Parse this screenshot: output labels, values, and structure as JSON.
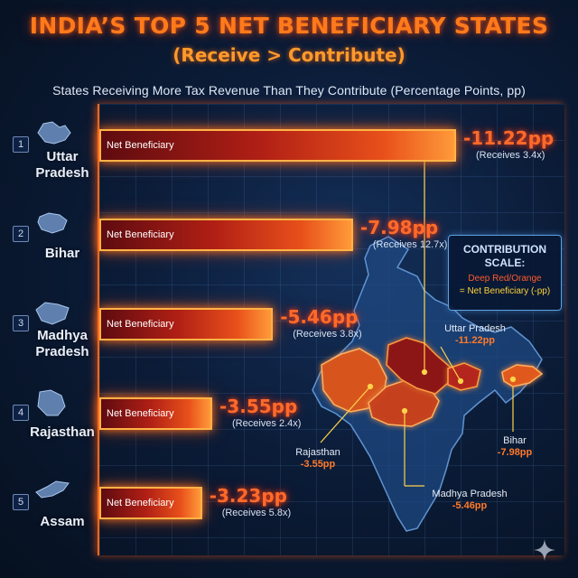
{
  "header": {
    "title": "INDIA’S TOP 5 NET BENEFICIARY STATES",
    "subtitle": "(Receive > Contribute)",
    "caption": "States Receiving More Tax Revenue Than They Contribute (Percentage Points, pp)"
  },
  "chart_data": {
    "type": "bar",
    "orientation": "horizontal",
    "title": "INDIA’S TOP 5 NET BENEFICIARY STATES",
    "subtitle": "(Receive > Contribute)",
    "unit": "pp",
    "categories": [
      "Uttar Pradesh",
      "Bihar",
      "Madhya Pradesh",
      "Rajasthan",
      "Assam"
    ],
    "values": [
      -11.22,
      -7.98,
      -5.46,
      -3.55,
      -3.23
    ],
    "value_labels": [
      "-11.22pp",
      "-7.98pp",
      "-5.46pp",
      "-3.55pp",
      "-3.23pp"
    ],
    "receives": [
      "(Receives 3.4x)",
      "(Receives 12.7x)",
      "(Receives 3.8x)",
      "(Receives 2.4x)",
      "(Receives 5.8x)"
    ],
    "bar_label": "Net Beneficiary",
    "ranks": [
      "1",
      "2",
      "3",
      "4",
      "5"
    ],
    "name_lines": [
      [
        "Uttar",
        "Pradesh"
      ],
      [
        "Bihar"
      ],
      [
        "Madhya",
        "Pradesh"
      ],
      [
        "Rajasthan"
      ],
      [
        "Assam"
      ]
    ],
    "colors": {
      "bar_dark": "#5e0b10",
      "bar_mid": "#b01f15",
      "bar_light": "#ff9a3a",
      "value": "#ff6a2a"
    }
  },
  "legend": {
    "title": "CONTRIBUTION SCALE:",
    "line1": "Deep Red/Orange",
    "line2": "= Net Beneficiary (-pp)"
  },
  "map": {
    "labels": [
      {
        "name": "Uttar Pradesh",
        "value": "-11.22pp"
      },
      {
        "name": "Bihar",
        "value": "-7.98pp"
      },
      {
        "name": "Rajasthan",
        "value": "-3.55pp"
      },
      {
        "name": "Madhya Pradesh",
        "value": "-5.46pp"
      }
    ]
  }
}
